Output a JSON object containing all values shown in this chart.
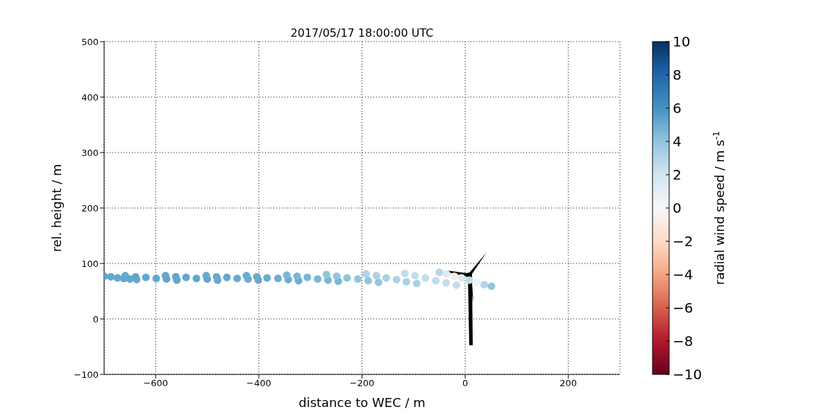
{
  "chart_data": {
    "type": "scatter",
    "title": "2017/05/17 18:00:00 UTC",
    "xlabel": "distance to WEC / m",
    "ylabel": "rel. height / m",
    "clabel": "radial wind speed / m s$^{-1}$",
    "x": [
      -700,
      -687,
      -674,
      -662,
      -650,
      -637,
      -659,
      -639,
      -619,
      -599,
      -579,
      -559,
      -581,
      -561,
      -541,
      -521,
      -500,
      -480,
      -502,
      -482,
      -462,
      -442,
      -421,
      -401,
      -424,
      -404,
      -384,
      -363,
      -343,
      -323,
      -346,
      -326,
      -306,
      -286,
      -266,
      -246,
      -269,
      -249,
      -229,
      -208,
      -188,
      -168,
      -192,
      -172,
      -153,
      -133,
      -114,
      -94,
      -117,
      -97,
      -77,
      -57,
      -37,
      -17,
      -50,
      -36,
      -21,
      -7,
      8,
      22,
      37,
      51
    ],
    "values": [
      77,
      76,
      74,
      73,
      72,
      71,
      78,
      76,
      75,
      73,
      72,
      70,
      78,
      76,
      75,
      73,
      72,
      70,
      78,
      76,
      75,
      73,
      72,
      70,
      78,
      76,
      74,
      73,
      71,
      69,
      79,
      77,
      75,
      72,
      70,
      68,
      80,
      77,
      74,
      72,
      69,
      66,
      81,
      78,
      74,
      71,
      67,
      64,
      82,
      78,
      74,
      69,
      65,
      61,
      84,
      81,
      77,
      74,
      70,
      66,
      62,
      59
    ],
    "cvalues": [
      5.2,
      5.2,
      5.2,
      5.2,
      5.2,
      5.2,
      5.2,
      5.2,
      5.2,
      5.2,
      5.2,
      5.2,
      5.2,
      5.2,
      5.2,
      5.2,
      5.2,
      5.2,
      5.1,
      5.1,
      5.1,
      5.1,
      5.1,
      5.1,
      5,
      5,
      5,
      5,
      5,
      5,
      4.6,
      4.6,
      4.6,
      4.6,
      4.6,
      4.6,
      4,
      4,
      4,
      4,
      4,
      4,
      3.2,
      3.2,
      3.2,
      3.2,
      3.2,
      3.2,
      2.5,
      2.5,
      2.5,
      2.5,
      2.5,
      2.5,
      3,
      1.5,
      -1,
      1.5,
      2.5,
      0.5,
      3,
      4
    ],
    "xlim": [
      -700,
      300
    ],
    "xticks": [
      {
        "value": -600,
        "label": "−600"
      },
      {
        "value": -400,
        "label": "−400"
      },
      {
        "value": -200,
        "label": "−200"
      },
      0,
      200
    ],
    "ylim": [
      -100,
      500
    ],
    "yticks": [
      {
        "value": -100,
        "label": "−100"
      },
      0,
      100,
      200,
      300,
      400,
      500
    ],
    "clim": [
      -10,
      10
    ],
    "cticks": [
      {
        "value": -10,
        "label": "−10"
      },
      {
        "value": -8,
        "label": "−8"
      },
      {
        "value": -6,
        "label": "−6"
      },
      {
        "value": -4,
        "label": "−4"
      },
      {
        "value": -2,
        "label": "−2"
      },
      0,
      2,
      4,
      6,
      8,
      10
    ],
    "grid": true
  }
}
